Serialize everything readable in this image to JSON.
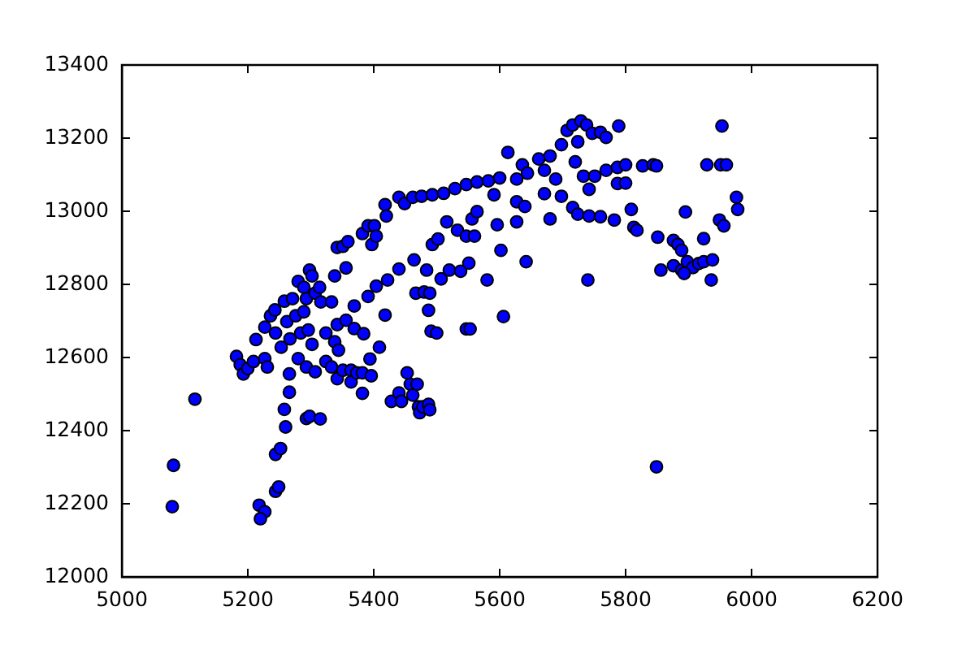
{
  "chart_data": {
    "type": "scatter",
    "color": "#0000ff",
    "marker": "circle",
    "xlim": [
      5000,
      6200
    ],
    "xticks": [
      5000,
      5200,
      5400,
      5600,
      5800,
      6000,
      6200
    ],
    "ylim": [
      12000,
      13400
    ],
    "yticks": [
      12000,
      12200,
      12400,
      12600,
      12800,
      13000,
      13200,
      13400
    ],
    "x": [
      5080,
      5082,
      5116,
      5218,
      5227,
      5220,
      5244,
      5249,
      5244,
      5252,
      5260,
      5258,
      5266,
      5266,
      5293,
      5298,
      5315,
      5849,
      5182,
      5188,
      5193,
      5200,
      5209,
      5213,
      5227,
      5227,
      5231,
      5236,
      5243,
      5244,
      5253,
      5258,
      5262,
      5267,
      5271,
      5276,
      5280,
      5284,
      5280,
      5289,
      5293,
      5298,
      5302,
      5289,
      5296,
      5302,
      5307,
      5316,
      5314,
      5324,
      5293,
      5307,
      5324,
      5333,
      5338,
      5333,
      5342,
      5351,
      5344,
      5342,
      5356,
      5364,
      5364,
      5369,
      5373,
      5382,
      5382,
      5384,
      5396,
      5369,
      5338,
      5356,
      5342,
      5351,
      5359,
      5382,
      5391,
      5401,
      5397,
      5404,
      5418,
      5420,
      5440,
      5449,
      5462,
      5476,
      5493,
      5511,
      5529,
      5547,
      5564,
      5582,
      5600,
      5591,
      5613,
      5627,
      5636,
      5644,
      5662,
      5671,
      5680,
      5689,
      5698,
      5707,
      5716,
      5729,
      5738,
      5747,
      5760,
      5769,
      5789,
      5724,
      5720,
      5733,
      5751,
      5769,
      5787,
      5800,
      5827,
      5844,
      5849,
      5742,
      5787,
      5800,
      5671,
      5627,
      5640,
      5627,
      5680,
      5698,
      5716,
      5724,
      5742,
      5760,
      5782,
      5809,
      5813,
      5818,
      5851,
      5876,
      5883,
      5889,
      5895,
      5924,
      5856,
      5876,
      5889,
      5898,
      5907,
      5916,
      5924,
      5938,
      5936,
      5893,
      5929,
      5951,
      5960,
      5953,
      5976,
      5978,
      5949,
      5956,
      5740,
      5606,
      5602,
      5596,
      5642,
      5394,
      5409,
      5418,
      5391,
      5404,
      5422,
      5440,
      5464,
      5484,
      5493,
      5502,
      5516,
      5507,
      5520,
      5538,
      5551,
      5533,
      5547,
      5560,
      5556,
      5564,
      5580,
      5467,
      5480,
      5489,
      5487,
      5491,
      5500,
      5547,
      5553,
      5428,
      5440,
      5444,
      5453,
      5458,
      5462,
      5469,
      5471,
      5473,
      5478,
      5487,
      5489
    ],
    "values": [
      12192,
      12305,
      12486,
      12196,
      12178,
      12159,
      12234,
      12246,
      12335,
      12351,
      12410,
      12458,
      12505,
      12555,
      12433,
      12439,
      12432,
      12301,
      12603,
      12580,
      12555,
      12570,
      12589,
      12649,
      12597,
      12683,
      12574,
      12714,
      12730,
      12667,
      12628,
      12754,
      12698,
      12651,
      12761,
      12714,
      12597,
      12667,
      12808,
      12792,
      12761,
      12839,
      12823,
      12725,
      12675,
      12636,
      12776,
      12752,
      12792,
      12667,
      12574,
      12561,
      12589,
      12752,
      12643,
      12574,
      12542,
      12565,
      12620,
      12690,
      12702,
      12565,
      12533,
      12679,
      12558,
      12558,
      12502,
      12665,
      12550,
      12741,
      12823,
      12845,
      12901,
      12904,
      12917,
      12939,
      12960,
      12960,
      12909,
      12932,
      13018,
      12987,
      13038,
      13021,
      13038,
      13041,
      13045,
      13049,
      13062,
      13073,
      13080,
      13083,
      13091,
      13045,
      13161,
      13088,
      13127,
      13104,
      13143,
      13112,
      13151,
      13088,
      13182,
      13221,
      13236,
      13247,
      13236,
      13213,
      13216,
      13202,
      13233,
      13190,
      13135,
      13096,
      13096,
      13112,
      13120,
      13127,
      13124,
      13127,
      13124,
      13060,
      13076,
      13077,
      13048,
      13026,
      13013,
      12971,
      12979,
      13041,
      13010,
      12992,
      12987,
      12985,
      12976,
      13005,
      12956,
      12948,
      12929,
      12920,
      12909,
      12893,
      12998,
      12925,
      12839,
      12851,
      12839,
      12862,
      12846,
      12857,
      12862,
      12867,
      12812,
      12830,
      13127,
      13127,
      13127,
      13233,
      13038,
      13005,
      12976,
      12960,
      12812,
      12712,
      12893,
      12963,
      12862,
      12596,
      12628,
      12716,
      12767,
      12795,
      12812,
      12842,
      12867,
      12839,
      12909,
      12924,
      12971,
      12815,
      12839,
      12836,
      12858,
      12948,
      12932,
      12932,
      12979,
      12999,
      12812,
      12776,
      12779,
      12776,
      12729,
      12672,
      12667,
      12678,
      12678,
      12480,
      12503,
      12480,
      12558,
      12527,
      12497,
      12527,
      12465,
      12449,
      12465,
      12472,
      12457
    ]
  }
}
